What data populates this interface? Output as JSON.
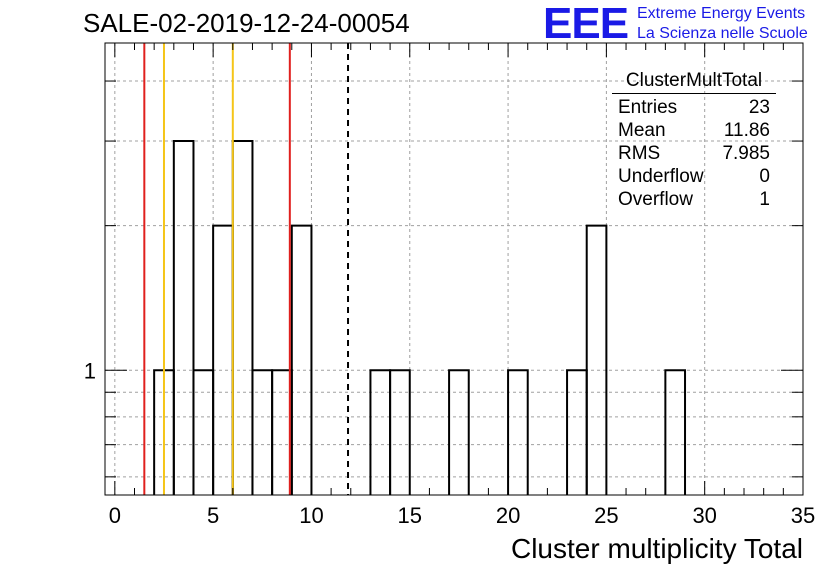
{
  "page": {
    "title": "SALE-02-2019-12-24-00054",
    "logo": {
      "mark": "EEE",
      "line1": "Extreme Energy Events",
      "line2": "La Scienza nelle Scuole"
    }
  },
  "colors": {
    "histogram": "#000000",
    "red_lines": "#e0201e",
    "orange_lines": "#f5c518",
    "grid": "#a0a0a0",
    "logo": "#1a1ae6"
  },
  "stats": {
    "title": "ClusterMultTotal",
    "rows": [
      {
        "label": "Entries",
        "value": "23"
      },
      {
        "label": "Mean",
        "value": "11.86"
      },
      {
        "label": "RMS",
        "value": "7.985"
      },
      {
        "label": "Underflow",
        "value": "0"
      },
      {
        "label": "Overflow",
        "value": "1"
      }
    ]
  },
  "chart_data": {
    "type": "bar",
    "style": "step histogram",
    "title": "SALE-02-2019-12-24-00054",
    "xlabel": "Cluster multiplicity Total",
    "ylabel": "",
    "xlim": [
      -0.5,
      35
    ],
    "y_scale": "log",
    "ylim": [
      0.55,
      4.8
    ],
    "bin_width": 1,
    "x_ticks": [
      "0",
      "5",
      "10",
      "15",
      "20",
      "25",
      "30",
      "35"
    ],
    "y_ticks": [
      "1"
    ],
    "grid": true,
    "bins": [
      {
        "x": 2.5,
        "value": 1
      },
      {
        "x": 3.5,
        "value": 3
      },
      {
        "x": 4.5,
        "value": 1
      },
      {
        "x": 5.5,
        "value": 2
      },
      {
        "x": 6.5,
        "value": 3
      },
      {
        "x": 7.5,
        "value": 1
      },
      {
        "x": 8.5,
        "value": 1
      },
      {
        "x": 9.5,
        "value": 2
      },
      {
        "x": 13.5,
        "value": 1
      },
      {
        "x": 14.5,
        "value": 1
      },
      {
        "x": 17.5,
        "value": 1
      },
      {
        "x": 20.5,
        "value": 1
      },
      {
        "x": 23.5,
        "value": 1
      },
      {
        "x": 24.5,
        "value": 2
      },
      {
        "x": 28.5,
        "value": 1
      }
    ],
    "vertical_lines": [
      {
        "x": 1.5,
        "color": "red"
      },
      {
        "x": 2.5,
        "color": "orange"
      },
      {
        "x": 6.0,
        "color": "orange"
      },
      {
        "x": 8.9,
        "color": "red"
      },
      {
        "x": 11.86,
        "color": "black",
        "style": "dashed"
      }
    ]
  }
}
